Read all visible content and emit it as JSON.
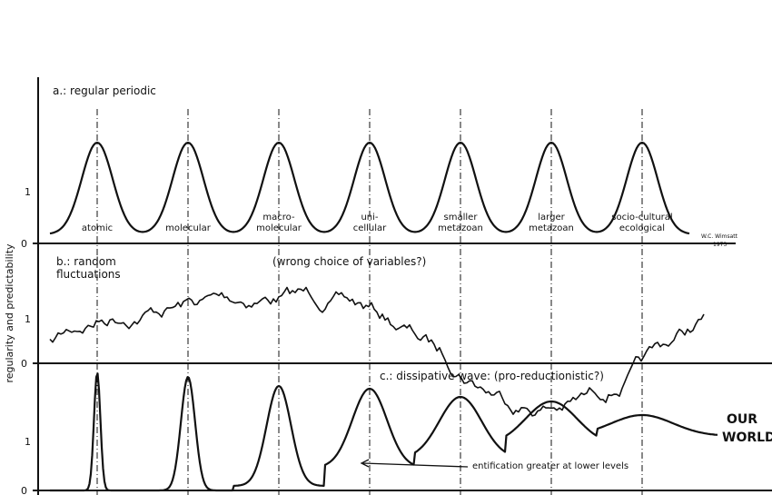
{
  "axis_label": "regularity and predictability",
  "panels": [
    {
      "title": "a.: regular periodic",
      "zero": "0",
      "one": "1",
      "levels": [
        [
          "atomic"
        ],
        [
          "molecular"
        ],
        [
          "macro-",
          "molecular"
        ],
        [
          "uni-",
          "cellular"
        ],
        [
          "smaller",
          "metazoan"
        ],
        [
          "larger",
          "metazoan"
        ],
        [
          "socio-cultural",
          "ecological"
        ]
      ]
    },
    {
      "title": [
        "b.: random",
        "fluctuations"
      ],
      "note": "(wrong choice of variables?)",
      "zero": "0",
      "one": "1"
    },
    {
      "title": "c.: dissipative wave: (pro-reductionistic?)",
      "note": "entification greater at lower levels",
      "end": [
        "OUR",
        "WORLD?"
      ],
      "zero": "0",
      "one": "1"
    }
  ],
  "signature": [
    "W.C. Wimsatt",
    "1973"
  ]
}
